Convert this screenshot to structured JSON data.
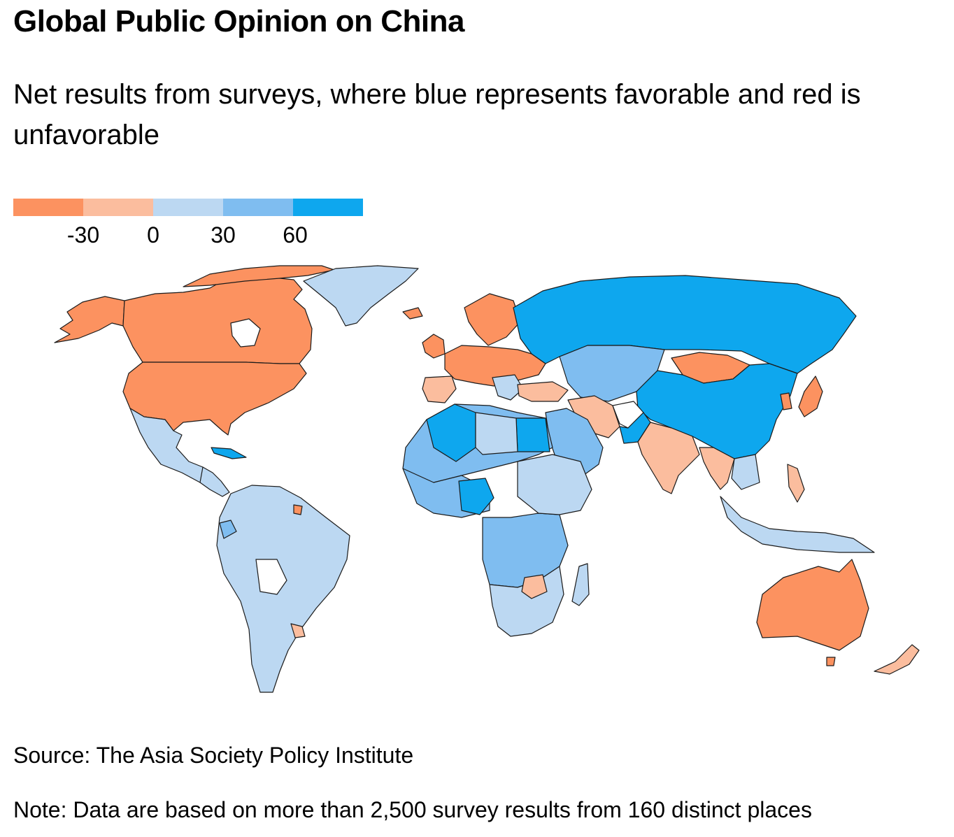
{
  "title": "Global Public Opinion on China",
  "subtitle": "Net results from surveys, where blue represents favorable and red is unfavorable",
  "legend": {
    "bins": [
      {
        "color": "#fc9260"
      },
      {
        "color": "#fbbd9e"
      },
      {
        "color": "#bcd8f2"
      },
      {
        "color": "#7fbdf0"
      },
      {
        "color": "#0ea7ee"
      }
    ],
    "ticks": [
      "-30",
      "0",
      "30",
      "60"
    ]
  },
  "colors": {
    "strong_unfavorable": "#fc9260",
    "mild_unfavorable": "#fbbd9e",
    "mild_favorable": "#bcd8f2",
    "favorable": "#7fbdf0",
    "strong_favorable": "#0ea7ee",
    "no_data": "#ffffff"
  },
  "source": "Source: The Asia Society Policy Institute",
  "note": "Note: Data are based on more than 2,500 survey results from 160 distinct places"
}
